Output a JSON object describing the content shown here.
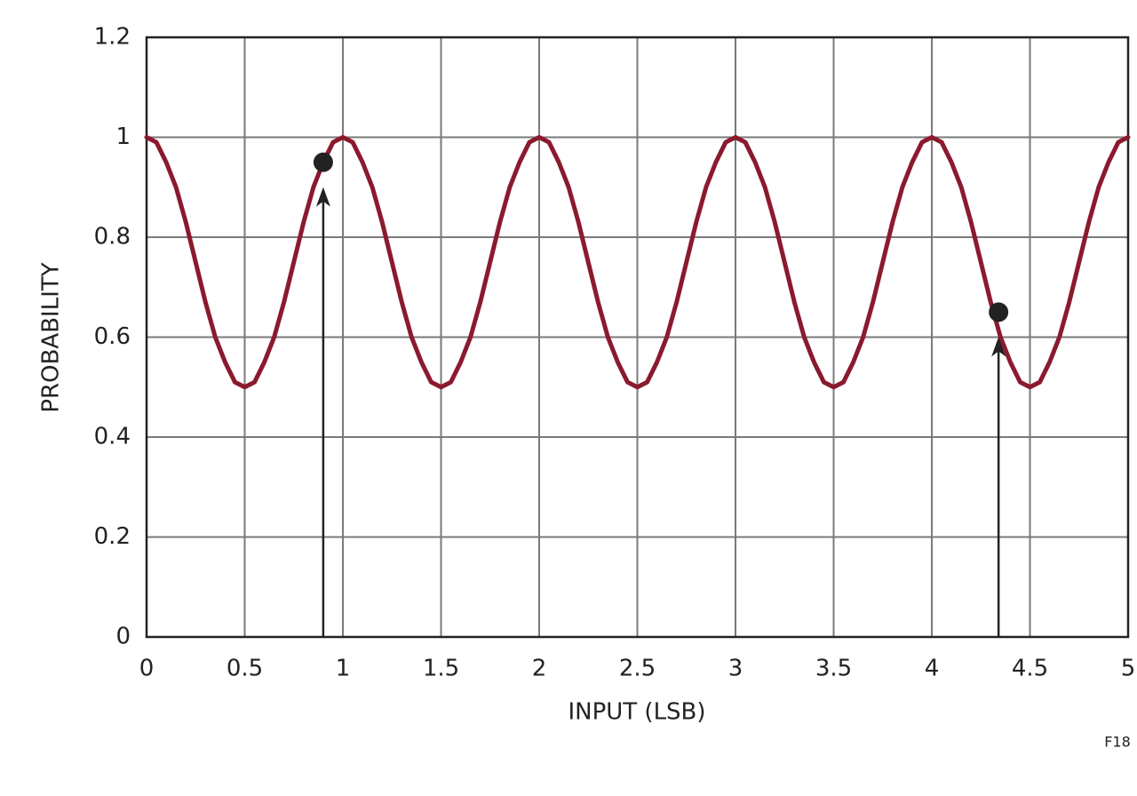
{
  "chart_data": {
    "type": "line",
    "x_label": "INPUT (LSB)",
    "y_label": "PROBABILITY",
    "figure_label": "F18",
    "xlim": [
      0,
      5
    ],
    "xticks": [
      0,
      0.5,
      1,
      1.5,
      2,
      2.5,
      3,
      3.5,
      4,
      4.5,
      5
    ],
    "ylim": [
      0,
      1.2
    ],
    "yticks": [
      0,
      0.2,
      0.4,
      0.6,
      0.8,
      1,
      1.2
    ],
    "grid": true,
    "x": [
      0,
      0.05,
      0.1,
      0.15,
      0.2,
      0.25,
      0.3,
      0.35,
      0.4,
      0.45,
      0.5,
      0.55,
      0.6,
      0.65,
      0.7,
      0.75,
      0.8,
      0.85,
      0.9,
      0.95,
      1,
      1.05,
      1.1,
      1.15,
      1.2,
      1.25,
      1.3,
      1.35,
      1.4,
      1.45,
      1.5,
      1.55,
      1.6,
      1.65,
      1.7,
      1.75,
      1.8,
      1.85,
      1.9,
      1.95,
      2,
      2.05,
      2.1,
      2.15,
      2.2,
      2.25,
      2.3,
      2.35,
      2.4,
      2.45,
      2.5,
      2.55,
      2.6,
      2.65,
      2.7,
      2.75,
      2.8,
      2.85,
      2.9,
      2.95,
      3,
      3.05,
      3.1,
      3.15,
      3.2,
      3.25,
      3.3,
      3.35,
      3.4,
      3.45,
      3.5,
      3.55,
      3.6,
      3.65,
      3.7,
      3.75,
      3.8,
      3.85,
      3.9,
      3.95,
      4,
      4.05,
      4.1,
      4.15,
      4.2,
      4.25,
      4.3,
      4.35,
      4.4,
      4.45,
      4.5,
      4.55,
      4.6,
      4.65,
      4.7,
      4.75,
      4.8,
      4.85,
      4.9,
      4.95,
      5
    ],
    "series": [
      {
        "color": "#8b1a2e",
        "values": [
          1,
          0.99,
          0.95,
          0.9,
          0.83,
          0.75,
          0.67,
          0.6,
          0.55,
          0.51,
          0.5,
          0.51,
          0.55,
          0.6,
          0.67,
          0.75,
          0.83,
          0.9,
          0.95,
          0.99,
          1,
          0.99,
          0.95,
          0.9,
          0.83,
          0.75,
          0.67,
          0.6,
          0.55,
          0.51,
          0.5,
          0.51,
          0.55,
          0.6,
          0.67,
          0.75,
          0.83,
          0.9,
          0.95,
          0.99,
          1,
          0.99,
          0.95,
          0.9,
          0.83,
          0.75,
          0.67,
          0.6,
          0.55,
          0.51,
          0.5,
          0.51,
          0.55,
          0.6,
          0.67,
          0.75,
          0.83,
          0.9,
          0.95,
          0.99,
          1,
          0.99,
          0.95,
          0.9,
          0.83,
          0.75,
          0.67,
          0.6,
          0.55,
          0.51,
          0.5,
          0.51,
          0.55,
          0.6,
          0.67,
          0.75,
          0.83,
          0.9,
          0.95,
          0.99,
          1,
          0.99,
          0.95,
          0.9,
          0.83,
          0.75,
          0.67,
          0.6,
          0.55,
          0.51,
          0.5,
          0.51,
          0.55,
          0.6,
          0.67,
          0.75,
          0.83,
          0.9,
          0.95,
          0.99,
          1
        ]
      }
    ],
    "markers": {
      "color": "#222222",
      "x": [
        0.9,
        4.34
      ],
      "y": [
        0.95,
        0.65
      ]
    }
  }
}
